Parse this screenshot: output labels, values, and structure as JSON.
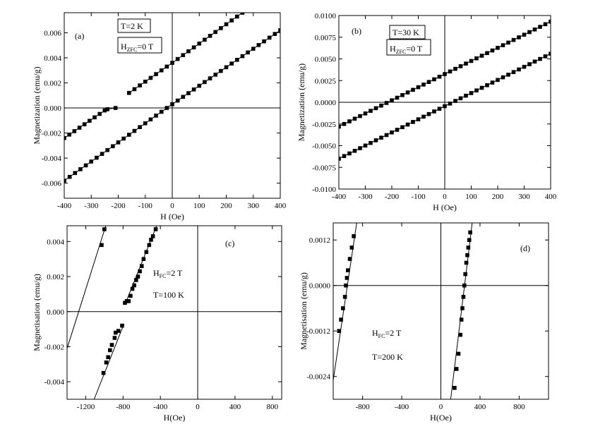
{
  "chart_data": [
    {
      "type": "scatter",
      "panel_label": "(a)",
      "annotations": [
        {
          "text": "T=2 K",
          "boxed": true
        },
        {
          "text": "H",
          "sub": "ZFC",
          "rest": "=0 T",
          "boxed": true
        }
      ],
      "xlabel": "H (Oe)",
      "ylabel": "Magnetization (emu/g)",
      "xlim": [
        -400,
        400
      ],
      "ylim": [
        -0.0072,
        0.0076
      ],
      "xticks": [
        -400,
        -300,
        -200,
        -100,
        0,
        100,
        200,
        300,
        400
      ],
      "xtick_labels": [
        "-400",
        "-300",
        "-200",
        "-100",
        "0",
        "100",
        "200",
        "300",
        "400"
      ],
      "yticks": [
        -0.006,
        -0.004,
        -0.002,
        0,
        0.002,
        0.004,
        0.006
      ],
      "ytick_labels": [
        "-0.006",
        "-0.004",
        "-0.002",
        "0.000",
        "0.002",
        "0.004",
        "0.006"
      ],
      "grid": false,
      "series": [
        {
          "x": [
            -400,
            -20,
            400
          ],
          "y": [
            -0.0058,
            0.0,
            0.0062
          ],
          "step": 20
        },
        {
          "x": [
            -400,
            -250
          ],
          "y": [
            -0.0024,
            -0.0002
          ],
          "step": 20
        },
        {
          "x": [
            -240,
            -210
          ],
          "y": [
            -0.0001,
            0.0
          ],
          "step": 30
        },
        {
          "x": [
            -160,
            0,
            260
          ],
          "y": [
            0.0012,
            0.0036,
            0.0076
          ],
          "step": 20
        }
      ]
    },
    {
      "type": "scatter",
      "panel_label": "(b)",
      "annotations": [
        {
          "text": "T=30 K",
          "boxed": true
        },
        {
          "text": "H",
          "sub": "ZFC",
          "rest": "=0 T",
          "boxed": true
        }
      ],
      "xlabel": "H (Oe)",
      "ylabel": "Magnetization (emu/g)",
      "xlim": [
        -400,
        400
      ],
      "ylim": [
        -0.01,
        0.01
      ],
      "xticks": [
        -400,
        -300,
        -200,
        -100,
        0,
        100,
        200,
        300,
        400
      ],
      "xtick_labels": [
        "-400",
        "-300",
        "-200",
        "-100",
        "0",
        "100",
        "200",
        "300",
        "400"
      ],
      "yticks": [
        -0.01,
        -0.0075,
        -0.005,
        -0.0025,
        0,
        0.0025,
        0.005,
        0.0075,
        0.01
      ],
      "ytick_labels": [
        "-0.0100",
        "-0.0075",
        "-0.0050",
        "-0.0025",
        "0.0000",
        "0.0025",
        "0.0050",
        "0.0075",
        "0.0100"
      ],
      "grid": false,
      "series": [
        {
          "x": [
            -400,
            400
          ],
          "y": [
            -0.0028,
            0.0093
          ],
          "step": 20
        },
        {
          "x": [
            -400,
            400
          ],
          "y": [
            -0.0065,
            0.0056
          ],
          "step": 20
        }
      ]
    },
    {
      "type": "line",
      "panel_label": "(c)",
      "annotations": [
        {
          "text": "H",
          "sub": "FC",
          "rest": "=2 T",
          "boxed": false
        },
        {
          "text": "T=100 K",
          "boxed": false
        }
      ],
      "xlabel": "H(Oe)",
      "ylabel": "Magnetisation (emu/g)",
      "xlim": [
        -1400,
        900
      ],
      "ylim": [
        -0.005,
        0.0049
      ],
      "xticks": [
        -1200,
        -800,
        -400,
        0,
        400,
        800
      ],
      "xtick_labels": [
        "-1200",
        "-800",
        "-400",
        "0",
        "400",
        "800"
      ],
      "yticks": [
        -0.004,
        -0.002,
        0,
        0.002,
        0.004
      ],
      "ytick_labels": [
        "-0.004",
        "-0.002",
        "0.000",
        "0.002",
        "0.004"
      ],
      "grid": false,
      "series": [
        {
          "line": [
            [
              -1400,
              -0.0021
            ],
            [
              -985,
              0.0049
            ]
          ],
          "x": [
            -1030,
            -1000
          ],
          "y": [
            0.0038,
            0.0047
          ]
        },
        {
          "line": [
            [
              -1110,
              -0.005
            ],
            [
              -790,
              -0.0007
            ]
          ],
          "x": [
            -1010,
            -980,
            -960,
            -940,
            -920,
            -890,
            -880,
            -850,
            -810
          ],
          "y": [
            -0.0035,
            -0.0029,
            -0.0026,
            -0.0022,
            -0.0019,
            -0.0015,
            -0.0012,
            -0.0011,
            -0.0008
          ]
        },
        {
          "line": [
            [
              -780,
              0.0004
            ],
            [
              -440,
              0.0049
            ]
          ],
          "x": [
            -780,
            -760,
            -740,
            -720,
            -700,
            -680,
            -660,
            -640,
            -620,
            -600,
            -580,
            -550,
            -520,
            -500,
            -480,
            -450
          ],
          "y": [
            0.0005,
            0.0006,
            0.0006,
            0.0009,
            0.0013,
            0.0015,
            0.0018,
            0.002,
            0.0023,
            0.0026,
            0.003,
            0.0034,
            0.0038,
            0.0041,
            0.0043,
            0.0047
          ]
        }
      ]
    },
    {
      "type": "line",
      "panel_label": "(d)",
      "annotations": [
        {
          "text": "H",
          "sub": "FC",
          "rest": "=2 T",
          "boxed": false
        },
        {
          "text": "T=200 K",
          "boxed": false
        }
      ],
      "xlabel": "H(Oe)",
      "ylabel": "Magnetisation (emu/g)",
      "xlim": [
        -1100,
        1100
      ],
      "ylim": [
        -0.003,
        0.00165
      ],
      "xticks": [
        -800,
        -400,
        0,
        400,
        800
      ],
      "xtick_labels": [
        "-800",
        "-400",
        "0",
        "400",
        "800"
      ],
      "yticks": [
        -0.0024,
        -0.0012,
        0,
        0.0012
      ],
      "ytick_labels": [
        "-0.0024",
        "-0.0012",
        "0.0000",
        "0.0012"
      ],
      "grid": false,
      "series": [
        {
          "line": [
            [
              -1100,
              -0.0025
            ],
            [
              -860,
              0.00165
            ]
          ],
          "x": [
            -1040,
            -1020,
            -1000,
            -980,
            -970,
            -960,
            -950,
            -930,
            -910,
            -890
          ],
          "y": [
            -0.0012,
            -0.0009,
            -0.0006,
            -0.0003,
            0.0,
            0.0002,
            0.0004,
            0.0007,
            0.001,
            0.0013
          ]
        },
        {
          "line": [
            [
              100,
              -0.003
            ],
            [
              320,
              0.00165
            ]
          ],
          "x": [
            140,
            160,
            180,
            200,
            210,
            220,
            230,
            240,
            250,
            260,
            270,
            280,
            290,
            300
          ],
          "y": [
            -0.0027,
            -0.0022,
            -0.0018,
            -0.0013,
            -0.0009,
            -0.0006,
            -0.0003,
            0.0,
            0.0003,
            0.0006,
            0.0008,
            0.001,
            0.0012,
            0.0014
          ]
        }
      ]
    }
  ]
}
